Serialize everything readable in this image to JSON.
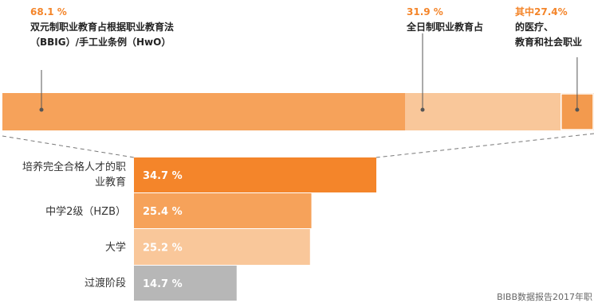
{
  "colors": {
    "strip_main": "#f6a25a",
    "strip_fulltime": "#f9c79a",
    "strip_health": "#f39a4e",
    "highlight": "#f4852a",
    "bar_1": "#f4852a",
    "bar_2": "#f6a25a",
    "bar_3": "#f9c79a",
    "bar_4": "#b7b7b7",
    "dashed": "#777777"
  },
  "annotations": {
    "dual": {
      "pct": "68.1 %",
      "line1": "双元制职业教育占根据职业教育法",
      "line2": "（BBIG）/手工业条例（HwO）"
    },
    "fulltime": {
      "pct": "31.9 %",
      "line1": "全日制职业教育占"
    },
    "health": {
      "pct": "其中27.4%",
      "line1": "的医疗、",
      "line2": "教育和社会职业"
    }
  },
  "source": "BIBB数据报告2017年职",
  "chart_data": [
    {
      "type": "bar",
      "orientation": "horizontal-stacked",
      "categories": [
        "双元制职业教育",
        "全日制职业教育"
      ],
      "values": [
        68.1,
        31.9
      ],
      "sub_value": {
        "parent": "全日制职业教育",
        "label": "医疗、教育和社会职业",
        "value": 27.4
      },
      "unit": "%"
    },
    {
      "type": "bar",
      "orientation": "horizontal",
      "categories": [
        "培养完全合格人才的职业教育",
        "中学2级（HZB）",
        "大学",
        "过渡阶段"
      ],
      "category_labels": [
        [
          "培养完全合格人才的职",
          "业教育"
        ],
        [
          "中学2级（HZB）"
        ],
        [
          "大学"
        ],
        [
          "过渡阶段"
        ]
      ],
      "values": [
        34.7,
        25.4,
        25.2,
        14.7
      ],
      "value_labels": [
        "34.7 %",
        "25.4 %",
        "25.2 %",
        "14.7 %"
      ],
      "unit": "%"
    }
  ]
}
